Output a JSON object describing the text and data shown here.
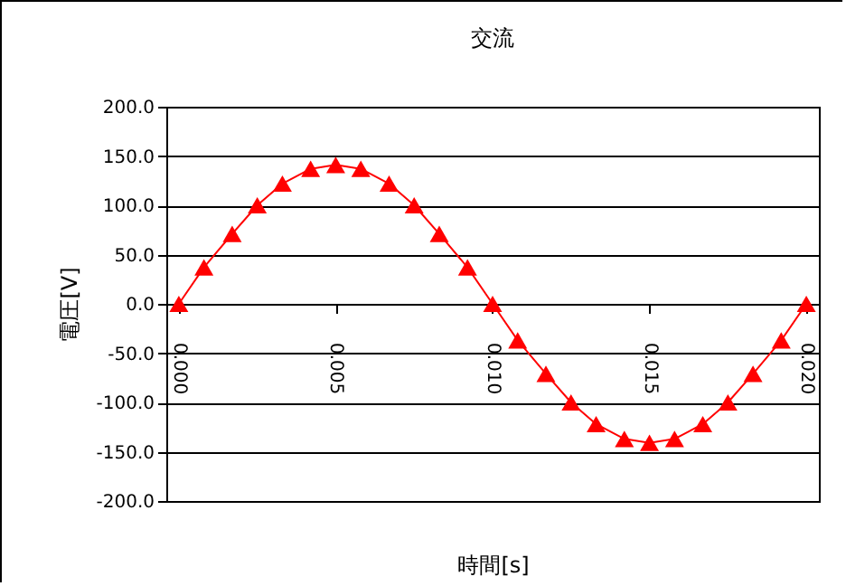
{
  "chart_data": {
    "type": "line",
    "title": "交流",
    "xlabel": "時間[s]",
    "ylabel": "電圧[V]",
    "x": [
      0,
      0.0008,
      0.0017,
      0.0025,
      0.0033,
      0.0042,
      0.005,
      0.0058,
      0.0067,
      0.0075,
      0.0083,
      0.0092,
      0.01,
      0.0108,
      0.0117,
      0.0125,
      0.0133,
      0.0142,
      0.015,
      0.0158,
      0.0167,
      0.0175,
      0.0183,
      0.0192,
      0.02
    ],
    "series": [
      {
        "color": "#ff0000",
        "values": [
          0,
          37,
          71,
          100,
          122,
          137,
          141,
          137,
          122,
          100,
          71,
          37,
          0,
          -37,
          -71,
          -100,
          -122,
          -137,
          -141,
          -137,
          -122,
          -100,
          -71,
          -37,
          0
        ]
      }
    ],
    "xlim": [
      -0.0004,
      0.0204
    ],
    "xticks": [
      {
        "value": 0,
        "label": "0.000"
      },
      {
        "value": 0.005,
        "label": "0.005"
      },
      {
        "value": 0.01,
        "label": "0.010"
      },
      {
        "value": 0.015,
        "label": "0.015"
      },
      {
        "value": 0.02,
        "label": "0.020"
      }
    ],
    "ylim": [
      -200,
      200
    ],
    "yticks": [
      {
        "value": -200,
        "label": "-200.0"
      },
      {
        "value": -150,
        "label": "-150.0"
      },
      {
        "value": -100,
        "label": "-100.0"
      },
      {
        "value": -50,
        "label": "-50.0"
      },
      {
        "value": 0,
        "label": "0.0"
      },
      {
        "value": 50,
        "label": "50.0"
      },
      {
        "value": 100,
        "label": "100.0"
      },
      {
        "value": 150,
        "label": "150.0"
      },
      {
        "value": 200,
        "label": "200.0"
      }
    ],
    "grid": "y",
    "marker": "triangle",
    "line_style": "solid",
    "legend": false
  }
}
